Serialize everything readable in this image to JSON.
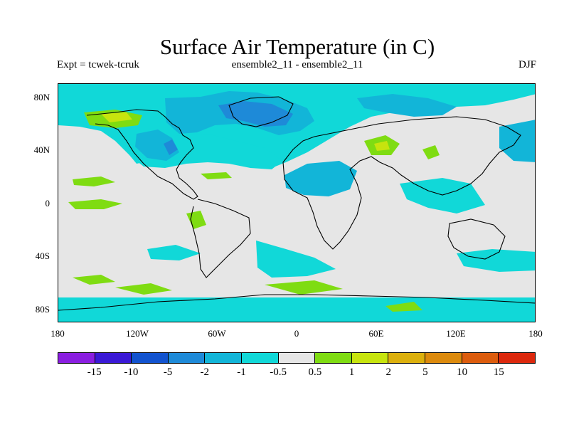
{
  "title": "Surface Air Temperature (in C)",
  "expt": "Expt = tcwek-tcruk",
  "ensemble": "ensemble2_11 - ensemble2_11",
  "season": "DJF",
  "map": {
    "lat_labels": [
      "80N",
      "40N",
      "0",
      "40S",
      "80S"
    ],
    "lon_labels": [
      "180",
      "120W",
      "60W",
      "0",
      "60E",
      "120E",
      "180"
    ],
    "background": "#e6e6e6",
    "coast_color": "#000000"
  },
  "colorbar": {
    "colors": [
      "#8a1ee0",
      "#3a19d6",
      "#1253cf",
      "#1e8ad8",
      "#12b5d8",
      "#11d8d8",
      "#e6e6e6",
      "#7fdc12",
      "#c7e40e",
      "#dcb00d",
      "#dc8a0d",
      "#dc5c0d",
      "#dc280d"
    ],
    "labels": [
      "-15",
      "-10",
      "-5",
      "-2",
      "-1",
      "-0.5",
      "0.5",
      "1",
      "2",
      "5",
      "10",
      "15"
    ]
  }
}
